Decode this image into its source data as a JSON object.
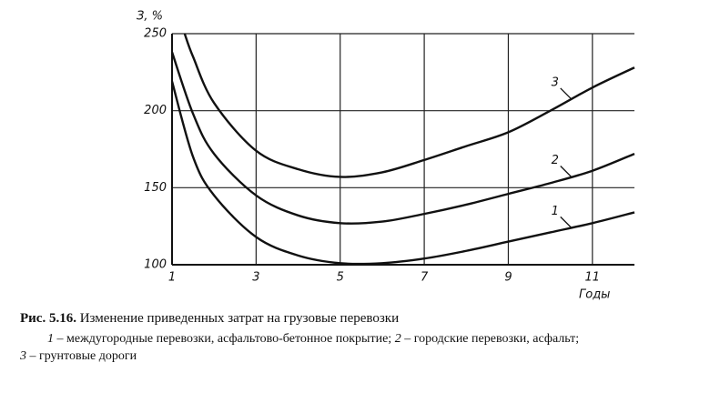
{
  "chart_data": {
    "type": "line",
    "y_label": "З, %",
    "x_label": "Годы",
    "xlim": [
      1,
      12
    ],
    "xticks": [
      1,
      3,
      5,
      7,
      9,
      11
    ],
    "ylim": [
      100,
      250
    ],
    "yticks": [
      100,
      150,
      200,
      250
    ],
    "grid": true,
    "color": "#111",
    "series": [
      {
        "name": "1",
        "x": [
          1,
          1.5,
          2,
          3,
          4,
          5,
          6,
          7,
          8,
          9,
          10,
          11,
          12
        ],
        "values": [
          219,
          170,
          145,
          118,
          106,
          101,
          101,
          104,
          109,
          115,
          121,
          127,
          134
        ]
      },
      {
        "name": "2",
        "x": [
          1,
          1.5,
          2,
          3,
          4,
          5,
          6,
          7,
          8,
          9,
          10,
          11,
          12
        ],
        "values": [
          238,
          198,
          172,
          145,
          132,
          127,
          128,
          133,
          139,
          146,
          153,
          161,
          172
        ]
      },
      {
        "name": "3",
        "x": [
          1.3,
          1.5,
          2,
          3,
          4,
          5,
          6,
          7,
          8,
          9,
          10,
          11,
          12
        ],
        "values": [
          250,
          235,
          205,
          174,
          162,
          157,
          160,
          168,
          177,
          186,
          200,
          215,
          228
        ]
      }
    ]
  },
  "caption": {
    "label": "Рис. 5.16.",
    "title": "Изменение приведенных затрат на грузовые перевозки",
    "notes": [
      "1",
      "– междугородные перевозки, асфальтово-бетонное покрытие;",
      "2",
      "– городские перевозки, асфальт;",
      "3",
      "– грунтовые дороги"
    ]
  }
}
